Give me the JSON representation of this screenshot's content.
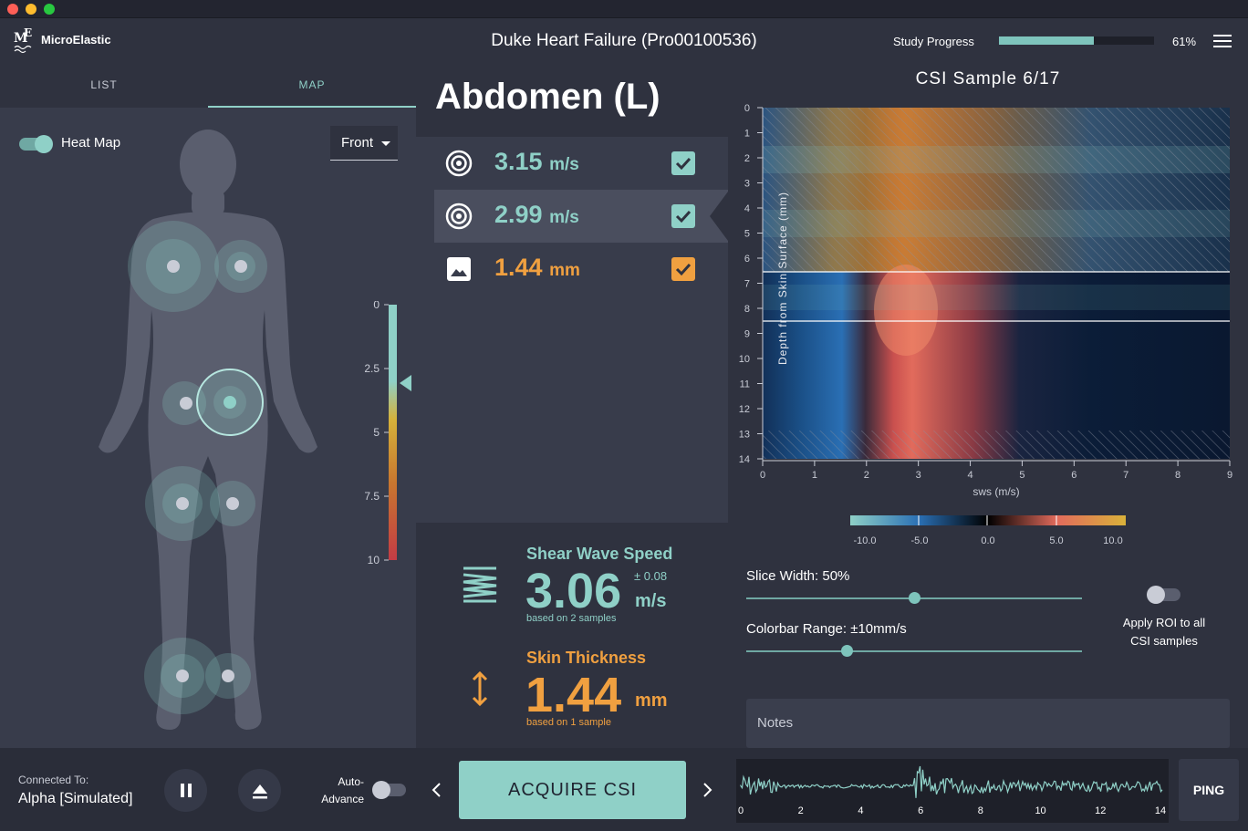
{
  "window": {
    "title": "Duke Heart Failure (Pro00100536)"
  },
  "brand": {
    "name": "MicroElastic",
    "mark": "ME"
  },
  "progress": {
    "label": "Study Progress",
    "value_text": "61%",
    "fraction": 0.61
  },
  "tabs": [
    {
      "label": "LIST"
    },
    {
      "label": "MAP"
    }
  ],
  "map": {
    "heatmap_label": "Heat Map",
    "view_select": "Front",
    "scale_ticks": [
      "0",
      "2.5",
      "5",
      "7.5",
      "10"
    ]
  },
  "region": {
    "title": "Abdomen (L)"
  },
  "measurements": [
    {
      "value": "3.15",
      "unit": "m/s",
      "icon": "target-icon"
    },
    {
      "value": "2.99",
      "unit": "m/s",
      "icon": "target-icon"
    },
    {
      "value": "1.44",
      "unit": "mm",
      "icon": "image-icon"
    }
  ],
  "summary": {
    "sws": {
      "label": "Shear Wave Speed",
      "value": "3.06",
      "unit": "m/s",
      "pm": "± 0.08",
      "basis": "based on 2 samples"
    },
    "skin": {
      "label": "Skin Thickness",
      "value": "1.44",
      "unit": "mm",
      "basis": "based on 1 sample"
    }
  },
  "csi": {
    "title": "CSI Sample 6/17",
    "ylabel": "Depth from Skin Surface (mm)",
    "xlabel": "sws (m/s)",
    "yticks": [
      "0",
      "1",
      "2",
      "3",
      "4",
      "5",
      "6",
      "7",
      "8",
      "9",
      "10",
      "11",
      "12",
      "13",
      "14"
    ],
    "xticks": [
      "0",
      "1",
      "2",
      "3",
      "4",
      "5",
      "6",
      "7",
      "8",
      "9"
    ],
    "colorbar_ticks": [
      "-10.0",
      "-5.0",
      "0.0",
      "5.0",
      "10.0"
    ]
  },
  "controls": {
    "slice_width_label": "Slice Width: 50%",
    "slice_width_fraction": 0.5,
    "colorbar_range_label": "Colorbar Range: ±10mm/s",
    "colorbar_range_fraction": 0.3,
    "apply_roi_label_1": "Apply ROI to all",
    "apply_roi_label_2": "CSI samples"
  },
  "notes": {
    "placeholder": "Notes"
  },
  "footer": {
    "connected_label": "Connected To:",
    "connected_value": "Alpha [Simulated]",
    "auto_advance_1": "Auto-",
    "auto_advance_2": "Advance",
    "acquire_label": "ACQUIRE CSI",
    "ping_label": "PING",
    "wave_ticks": [
      "0",
      "2",
      "4",
      "6",
      "8",
      "10",
      "12",
      "14"
    ]
  },
  "colors": {
    "accent": "#8fd0c7",
    "orange": "#f0a040",
    "panel": "#383c4b"
  }
}
